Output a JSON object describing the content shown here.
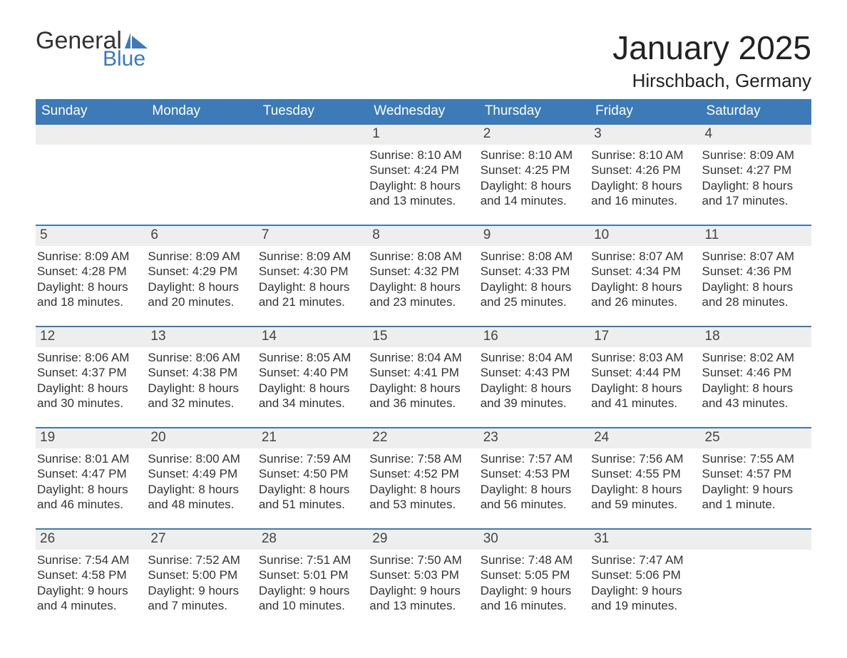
{
  "logo": {
    "text_general": "General",
    "text_blue": "Blue",
    "flag_color": "#3c7ab8"
  },
  "title": {
    "month": "January 2025",
    "location": "Hirschbach, Germany"
  },
  "colors": {
    "header_bg": "#3c7ab8",
    "header_text": "#ffffff",
    "daynum_bg": "#eeeeee",
    "body_text": "#333333",
    "border": "#3c7ab8",
    "page_bg": "#ffffff"
  },
  "typography": {
    "month_title_fontsize": 46,
    "location_fontsize": 26,
    "weekday_fontsize": 19,
    "daynum_fontsize": 19,
    "body_fontsize": 17,
    "font_family": "Arial"
  },
  "layout": {
    "columns": 7,
    "rows": 5
  },
  "calendar": {
    "weekdays": [
      "Sunday",
      "Monday",
      "Tuesday",
      "Wednesday",
      "Thursday",
      "Friday",
      "Saturday"
    ],
    "weeks": [
      [
        null,
        null,
        null,
        {
          "day": "1",
          "sunrise": "Sunrise: 8:10 AM",
          "sunset": "Sunset: 4:24 PM",
          "daylight1": "Daylight: 8 hours",
          "daylight2": "and 13 minutes."
        },
        {
          "day": "2",
          "sunrise": "Sunrise: 8:10 AM",
          "sunset": "Sunset: 4:25 PM",
          "daylight1": "Daylight: 8 hours",
          "daylight2": "and 14 minutes."
        },
        {
          "day": "3",
          "sunrise": "Sunrise: 8:10 AM",
          "sunset": "Sunset: 4:26 PM",
          "daylight1": "Daylight: 8 hours",
          "daylight2": "and 16 minutes."
        },
        {
          "day": "4",
          "sunrise": "Sunrise: 8:09 AM",
          "sunset": "Sunset: 4:27 PM",
          "daylight1": "Daylight: 8 hours",
          "daylight2": "and 17 minutes."
        }
      ],
      [
        {
          "day": "5",
          "sunrise": "Sunrise: 8:09 AM",
          "sunset": "Sunset: 4:28 PM",
          "daylight1": "Daylight: 8 hours",
          "daylight2": "and 18 minutes."
        },
        {
          "day": "6",
          "sunrise": "Sunrise: 8:09 AM",
          "sunset": "Sunset: 4:29 PM",
          "daylight1": "Daylight: 8 hours",
          "daylight2": "and 20 minutes."
        },
        {
          "day": "7",
          "sunrise": "Sunrise: 8:09 AM",
          "sunset": "Sunset: 4:30 PM",
          "daylight1": "Daylight: 8 hours",
          "daylight2": "and 21 minutes."
        },
        {
          "day": "8",
          "sunrise": "Sunrise: 8:08 AM",
          "sunset": "Sunset: 4:32 PM",
          "daylight1": "Daylight: 8 hours",
          "daylight2": "and 23 minutes."
        },
        {
          "day": "9",
          "sunrise": "Sunrise: 8:08 AM",
          "sunset": "Sunset: 4:33 PM",
          "daylight1": "Daylight: 8 hours",
          "daylight2": "and 25 minutes."
        },
        {
          "day": "10",
          "sunrise": "Sunrise: 8:07 AM",
          "sunset": "Sunset: 4:34 PM",
          "daylight1": "Daylight: 8 hours",
          "daylight2": "and 26 minutes."
        },
        {
          "day": "11",
          "sunrise": "Sunrise: 8:07 AM",
          "sunset": "Sunset: 4:36 PM",
          "daylight1": "Daylight: 8 hours",
          "daylight2": "and 28 minutes."
        }
      ],
      [
        {
          "day": "12",
          "sunrise": "Sunrise: 8:06 AM",
          "sunset": "Sunset: 4:37 PM",
          "daylight1": "Daylight: 8 hours",
          "daylight2": "and 30 minutes."
        },
        {
          "day": "13",
          "sunrise": "Sunrise: 8:06 AM",
          "sunset": "Sunset: 4:38 PM",
          "daylight1": "Daylight: 8 hours",
          "daylight2": "and 32 minutes."
        },
        {
          "day": "14",
          "sunrise": "Sunrise: 8:05 AM",
          "sunset": "Sunset: 4:40 PM",
          "daylight1": "Daylight: 8 hours",
          "daylight2": "and 34 minutes."
        },
        {
          "day": "15",
          "sunrise": "Sunrise: 8:04 AM",
          "sunset": "Sunset: 4:41 PM",
          "daylight1": "Daylight: 8 hours",
          "daylight2": "and 36 minutes."
        },
        {
          "day": "16",
          "sunrise": "Sunrise: 8:04 AM",
          "sunset": "Sunset: 4:43 PM",
          "daylight1": "Daylight: 8 hours",
          "daylight2": "and 39 minutes."
        },
        {
          "day": "17",
          "sunrise": "Sunrise: 8:03 AM",
          "sunset": "Sunset: 4:44 PM",
          "daylight1": "Daylight: 8 hours",
          "daylight2": "and 41 minutes."
        },
        {
          "day": "18",
          "sunrise": "Sunrise: 8:02 AM",
          "sunset": "Sunset: 4:46 PM",
          "daylight1": "Daylight: 8 hours",
          "daylight2": "and 43 minutes."
        }
      ],
      [
        {
          "day": "19",
          "sunrise": "Sunrise: 8:01 AM",
          "sunset": "Sunset: 4:47 PM",
          "daylight1": "Daylight: 8 hours",
          "daylight2": "and 46 minutes."
        },
        {
          "day": "20",
          "sunrise": "Sunrise: 8:00 AM",
          "sunset": "Sunset: 4:49 PM",
          "daylight1": "Daylight: 8 hours",
          "daylight2": "and 48 minutes."
        },
        {
          "day": "21",
          "sunrise": "Sunrise: 7:59 AM",
          "sunset": "Sunset: 4:50 PM",
          "daylight1": "Daylight: 8 hours",
          "daylight2": "and 51 minutes."
        },
        {
          "day": "22",
          "sunrise": "Sunrise: 7:58 AM",
          "sunset": "Sunset: 4:52 PM",
          "daylight1": "Daylight: 8 hours",
          "daylight2": "and 53 minutes."
        },
        {
          "day": "23",
          "sunrise": "Sunrise: 7:57 AM",
          "sunset": "Sunset: 4:53 PM",
          "daylight1": "Daylight: 8 hours",
          "daylight2": "and 56 minutes."
        },
        {
          "day": "24",
          "sunrise": "Sunrise: 7:56 AM",
          "sunset": "Sunset: 4:55 PM",
          "daylight1": "Daylight: 8 hours",
          "daylight2": "and 59 minutes."
        },
        {
          "day": "25",
          "sunrise": "Sunrise: 7:55 AM",
          "sunset": "Sunset: 4:57 PM",
          "daylight1": "Daylight: 9 hours",
          "daylight2": "and 1 minute."
        }
      ],
      [
        {
          "day": "26",
          "sunrise": "Sunrise: 7:54 AM",
          "sunset": "Sunset: 4:58 PM",
          "daylight1": "Daylight: 9 hours",
          "daylight2": "and 4 minutes."
        },
        {
          "day": "27",
          "sunrise": "Sunrise: 7:52 AM",
          "sunset": "Sunset: 5:00 PM",
          "daylight1": "Daylight: 9 hours",
          "daylight2": "and 7 minutes."
        },
        {
          "day": "28",
          "sunrise": "Sunrise: 7:51 AM",
          "sunset": "Sunset: 5:01 PM",
          "daylight1": "Daylight: 9 hours",
          "daylight2": "and 10 minutes."
        },
        {
          "day": "29",
          "sunrise": "Sunrise: 7:50 AM",
          "sunset": "Sunset: 5:03 PM",
          "daylight1": "Daylight: 9 hours",
          "daylight2": "and 13 minutes."
        },
        {
          "day": "30",
          "sunrise": "Sunrise: 7:48 AM",
          "sunset": "Sunset: 5:05 PM",
          "daylight1": "Daylight: 9 hours",
          "daylight2": "and 16 minutes."
        },
        {
          "day": "31",
          "sunrise": "Sunrise: 7:47 AM",
          "sunset": "Sunset: 5:06 PM",
          "daylight1": "Daylight: 9 hours",
          "daylight2": "and 19 minutes."
        },
        null
      ]
    ]
  }
}
